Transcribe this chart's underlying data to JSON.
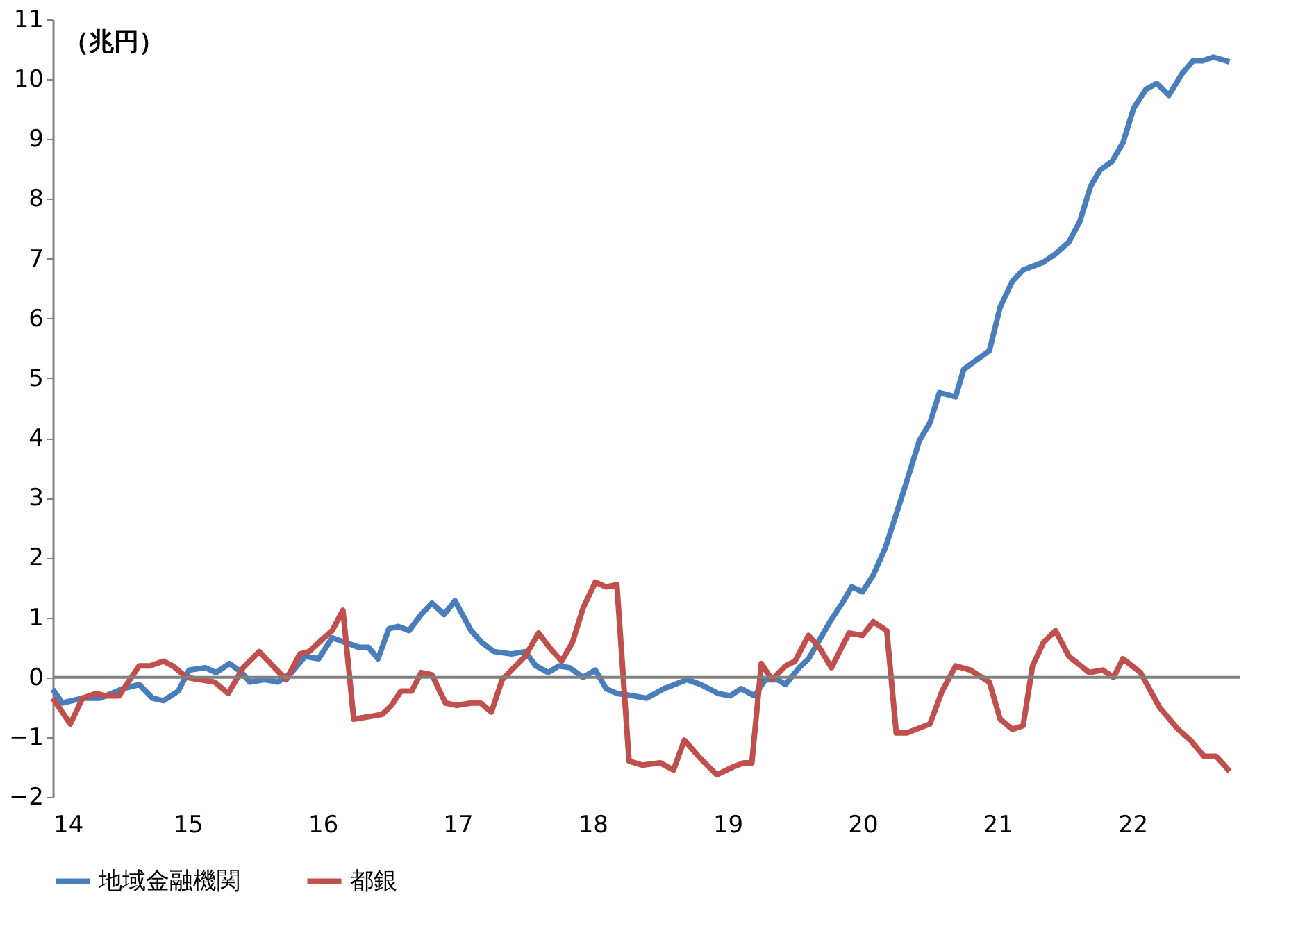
{
  "chart_data": {
    "type": "line",
    "annotations": [
      "（兆円）"
    ],
    "xlim": [
      14,
      22.8
    ],
    "xticks": [
      14,
      15,
      16,
      17,
      18,
      19,
      20,
      21,
      22
    ],
    "ylim": [
      -2,
      11
    ],
    "yticks": [
      -2,
      -1,
      0,
      1,
      2,
      3,
      4,
      5,
      6,
      7,
      8,
      9,
      10,
      11
    ],
    "grid": false,
    "legend": "bottom",
    "marker": "none",
    "line_style": "solid",
    "ref_lines": [
      {
        "axis": "y",
        "value": 0,
        "color": "#808080"
      }
    ],
    "series": [
      {
        "name": "地域金融機関",
        "color": "#4a7ebb",
        "x": [
          14.0,
          14.07,
          14.22,
          14.35,
          14.52,
          14.64,
          14.74,
          14.82,
          14.93,
          15.01,
          15.13,
          15.21,
          15.31,
          15.4,
          15.46,
          15.57,
          15.67,
          15.77,
          15.87,
          15.97,
          16.07,
          16.17,
          16.27,
          16.34,
          16.41,
          16.49,
          16.56,
          16.64,
          16.73,
          16.81,
          16.9,
          16.98,
          17.1,
          17.18,
          17.27,
          17.4,
          17.5,
          17.58,
          17.67,
          17.75,
          17.83,
          17.93,
          18.02,
          18.1,
          18.18,
          18.3,
          18.4,
          18.53,
          18.7,
          18.8,
          18.93,
          19.02,
          19.1,
          19.2,
          19.28,
          19.37,
          19.43,
          19.53,
          19.6,
          19.68,
          19.77,
          19.85,
          19.92,
          20.0,
          20.08,
          20.17,
          20.32,
          20.42,
          20.5,
          20.57,
          20.69,
          20.75,
          20.94,
          21.02,
          21.11,
          21.19,
          21.34,
          21.43,
          21.53,
          21.61,
          21.69,
          21.76,
          21.85,
          21.93,
          22.01,
          22.1,
          22.18,
          22.27,
          22.37,
          22.45,
          22.52,
          22.6,
          22.72
        ],
        "values": [
          -0.2,
          -0.43,
          -0.35,
          -0.35,
          -0.19,
          -0.12,
          -0.35,
          -0.39,
          -0.23,
          0.12,
          0.16,
          0.08,
          0.23,
          0.08,
          -0.08,
          -0.04,
          -0.08,
          0.08,
          0.35,
          0.31,
          0.66,
          0.58,
          0.5,
          0.5,
          0.31,
          0.81,
          0.85,
          0.78,
          1.05,
          1.24,
          1.05,
          1.28,
          0.78,
          0.58,
          0.43,
          0.39,
          0.43,
          0.19,
          0.08,
          0.19,
          0.16,
          0.0,
          0.12,
          -0.19,
          -0.27,
          -0.31,
          -0.35,
          -0.19,
          -0.04,
          -0.12,
          -0.27,
          -0.31,
          -0.19,
          -0.31,
          -0.04,
          -0.04,
          -0.12,
          0.16,
          0.31,
          0.62,
          0.97,
          1.24,
          1.51,
          1.43,
          1.71,
          2.17,
          3.22,
          3.95,
          4.26,
          4.76,
          4.69,
          5.15,
          5.46,
          6.19,
          6.62,
          6.81,
          6.94,
          7.08,
          7.28,
          7.62,
          8.21,
          8.48,
          8.63,
          8.94,
          9.52,
          9.83,
          9.93,
          9.73,
          10.1,
          10.31,
          10.31,
          10.37,
          10.29
        ]
      },
      {
        "name": "都銀",
        "color": "#c0504d",
        "x": [
          14.0,
          14.13,
          14.22,
          14.32,
          14.39,
          14.49,
          14.64,
          14.72,
          14.82,
          14.89,
          14.99,
          15.09,
          15.2,
          15.3,
          15.41,
          15.53,
          15.63,
          15.73,
          15.83,
          15.9,
          15.99,
          16.07,
          16.15,
          16.23,
          16.34,
          16.44,
          16.51,
          16.58,
          16.66,
          16.73,
          16.81,
          16.91,
          16.99,
          17.1,
          17.17,
          17.25,
          17.33,
          17.43,
          17.5,
          17.6,
          17.68,
          17.77,
          17.85,
          17.93,
          18.02,
          18.1,
          18.18,
          18.27,
          18.37,
          18.5,
          18.6,
          18.68,
          18.8,
          18.92,
          19.03,
          19.12,
          19.18,
          19.25,
          19.33,
          19.43,
          19.5,
          19.6,
          19.68,
          19.77,
          19.9,
          20.0,
          20.08,
          20.18,
          20.25,
          20.33,
          20.5,
          20.59,
          20.69,
          20.8,
          20.94,
          21.02,
          21.11,
          21.19,
          21.26,
          21.34,
          21.43,
          21.53,
          21.68,
          21.78,
          21.86,
          21.93,
          22.06,
          22.2,
          22.33,
          22.43,
          22.53,
          22.62,
          22.72
        ],
        "values": [
          -0.35,
          -0.78,
          -0.35,
          -0.27,
          -0.31,
          -0.31,
          0.19,
          0.19,
          0.27,
          0.19,
          0.0,
          -0.04,
          -0.08,
          -0.27,
          0.16,
          0.43,
          0.19,
          -0.04,
          0.39,
          0.43,
          0.62,
          0.78,
          1.12,
          -0.7,
          -0.66,
          -0.62,
          -0.47,
          -0.23,
          -0.23,
          0.08,
          0.04,
          -0.43,
          -0.47,
          -0.43,
          -0.43,
          -0.58,
          -0.04,
          0.19,
          0.35,
          0.74,
          0.5,
          0.27,
          0.58,
          1.16,
          1.59,
          1.51,
          1.55,
          -1.4,
          -1.47,
          -1.43,
          -1.55,
          -1.05,
          -1.36,
          -1.63,
          -1.51,
          -1.43,
          -1.43,
          0.23,
          -0.04,
          0.19,
          0.27,
          0.7,
          0.5,
          0.16,
          0.74,
          0.7,
          0.93,
          0.78,
          -0.93,
          -0.93,
          -0.78,
          -0.23,
          0.19,
          0.12,
          -0.08,
          -0.7,
          -0.87,
          -0.81,
          0.19,
          0.58,
          0.78,
          0.35,
          0.08,
          0.12,
          0.0,
          0.31,
          0.08,
          -0.5,
          -0.85,
          -1.05,
          -1.32,
          -1.32,
          -1.57
        ]
      }
    ]
  }
}
